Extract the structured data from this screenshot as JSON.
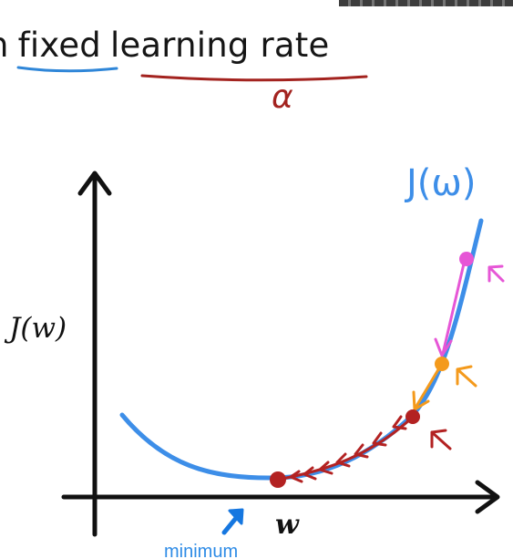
{
  "title": {
    "prefix": "n",
    "word_fixed": "fixed",
    "phrase_learning_rate": "learning rate",
    "alpha_symbol": "α"
  },
  "curve_label": "J(ω)",
  "axes": {
    "y_label": "J(w)",
    "x_label": "w"
  },
  "minimum_label": "minimum",
  "colors": {
    "curve": "#3d8ee8",
    "axes": "#111111",
    "underline_fixed": "#2f86d8",
    "underline_learning_rate": "#a3231f",
    "step_pink": "#e656d6",
    "step_orange": "#f49a1c",
    "step_red": "#b32222",
    "minimum_arrow": "#1677e0",
    "label_blue": "#2d8be6"
  }
}
